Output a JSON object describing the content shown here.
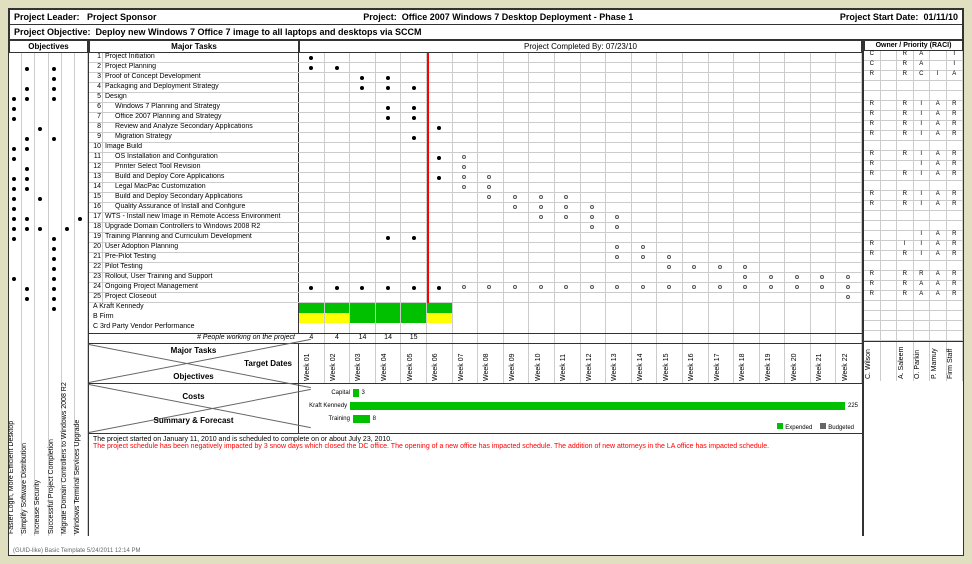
{
  "header": {
    "leader_label": "Project Leader:",
    "sponsor_label": "Project Sponsor",
    "project_label": "Project:",
    "project_name": "Office 2007 Windows 7 Desktop Deployment - Phase 1",
    "start_label": "Project Start Date:",
    "start_date": "01/11/10",
    "objective_label": "Project Objective:",
    "objective_text": "Deploy new Windows 7 Office 7 image to all laptops and desktops via SCCM"
  },
  "sections": {
    "objectives": "Objectives",
    "major_tasks": "Major Tasks",
    "completed_by": "Project Completed By: 07/23/10",
    "owner_priority": "Owner / Priority (RACI)",
    "target_dates": "Target\nDates",
    "costs": "Costs",
    "summary": "Summary & Forecast",
    "people_label": "# People working on the project"
  },
  "objectives": [
    {
      "label": "Faster Login, More Efficient Desktop",
      "dots": [
        3,
        4,
        5,
        8,
        9,
        11,
        12,
        13,
        14,
        15,
        16,
        17,
        21
      ]
    },
    {
      "label": "Simplify Software Distribution",
      "dots": [
        0,
        2,
        3,
        7,
        8,
        10,
        11,
        12,
        15,
        16,
        22,
        23
      ]
    },
    {
      "label": "Increase Security",
      "dots": [
        6,
        13,
        16
      ]
    },
    {
      "label": "Successful Project Completion",
      "dots": [
        0,
        1,
        2,
        3,
        7,
        17,
        18,
        19,
        20,
        21,
        22,
        23,
        24
      ]
    },
    {
      "label": "Migrate Domain Controllers to Windows 2008 R2",
      "dots": [
        16
      ]
    },
    {
      "label": "Windows Terminal Services Upgrade",
      "dots": [
        15
      ]
    }
  ],
  "tasks": [
    {
      "n": 1,
      "name": "Project Initiation",
      "indent": 0,
      "dots_f": [
        0
      ],
      "raci": [
        "C",
        "",
        "R",
        "A",
        "",
        "I"
      ]
    },
    {
      "n": 2,
      "name": "Project Planning",
      "indent": 0,
      "dots_f": [
        0,
        1
      ],
      "raci": [
        "C",
        "",
        "R",
        "A",
        "",
        "I"
      ]
    },
    {
      "n": 3,
      "name": "Proof of Concept Development",
      "indent": 0,
      "dots_f": [
        2,
        3
      ],
      "raci": [
        "R",
        "",
        "R",
        "C",
        "I",
        "A"
      ]
    },
    {
      "n": 4,
      "name": "Packaging and Deployment Strategy",
      "indent": 0,
      "dots_f": [
        2,
        3,
        4
      ],
      "raci": [
        "",
        "",
        "",
        "",
        "",
        ""
      ]
    },
    {
      "n": 5,
      "name": "Design",
      "indent": 0,
      "dots_f": [],
      "raci": [
        "",
        "",
        "",
        "",
        "",
        ""
      ]
    },
    {
      "n": 6,
      "name": "Windows 7 Planning and Strategy",
      "indent": 1,
      "dots_f": [
        3,
        4
      ],
      "raci": [
        "R",
        "",
        "R",
        "I",
        "A",
        "R"
      ]
    },
    {
      "n": 7,
      "name": "Office 2007 Planning and Strategy",
      "indent": 1,
      "dots_f": [
        3,
        4
      ],
      "raci": [
        "R",
        "",
        "R",
        "I",
        "A",
        "R"
      ]
    },
    {
      "n": 8,
      "name": "Review and Analyze Secondary Applications",
      "indent": 1,
      "dots_f": [
        5
      ],
      "raci": [
        "R",
        "",
        "R",
        "I",
        "A",
        "R"
      ]
    },
    {
      "n": 9,
      "name": "Migration Strategy",
      "indent": 1,
      "dots_f": [
        4
      ],
      "raci": [
        "R",
        "",
        "R",
        "I",
        "A",
        "R"
      ]
    },
    {
      "n": 10,
      "name": "Image Build",
      "indent": 0,
      "dots_f": [],
      "raci": [
        "",
        "",
        "",
        "",
        "",
        ""
      ]
    },
    {
      "n": 11,
      "name": "OS Installation and Configuration",
      "indent": 1,
      "dots_f": [
        5
      ],
      "dots_o": [
        6
      ],
      "raci": [
        "R",
        "",
        "R",
        "I",
        "A",
        "R"
      ]
    },
    {
      "n": 12,
      "name": "Printer Select Tool Revision",
      "indent": 1,
      "dots_f": [],
      "dots_o": [
        6
      ],
      "raci": [
        "R",
        "",
        "",
        "I",
        "A",
        "R"
      ]
    },
    {
      "n": 13,
      "name": "Build and Deploy Core Applications",
      "indent": 1,
      "dots_f": [
        5
      ],
      "dots_o": [
        6,
        7
      ],
      "raci": [
        "R",
        "",
        "R",
        "I",
        "A",
        "R"
      ]
    },
    {
      "n": 14,
      "name": "Legal MacPac Customization",
      "indent": 1,
      "dots_f": [],
      "dots_o": [
        6,
        7
      ],
      "raci": [
        "",
        "",
        "",
        "",
        "",
        ""
      ]
    },
    {
      "n": 15,
      "name": "Build and Deploy Secondary Applications",
      "indent": 1,
      "dots_f": [],
      "dots_o": [
        7,
        8,
        9,
        10
      ],
      "raci": [
        "R",
        "",
        "R",
        "I",
        "A",
        "R"
      ]
    },
    {
      "n": 16,
      "name": "Quality Assurance of Install and Configure",
      "indent": 1,
      "dots_f": [],
      "dots_o": [
        8,
        9,
        10,
        11
      ],
      "raci": [
        "R",
        "",
        "R",
        "I",
        "A",
        "R"
      ]
    },
    {
      "n": 17,
      "name": "WTS - Install new Image in Remote Access Environment",
      "indent": 0,
      "dots_f": [],
      "dots_o": [
        9,
        10,
        11,
        12
      ],
      "raci": [
        "",
        "",
        "",
        "",
        "",
        ""
      ]
    },
    {
      "n": 18,
      "name": "Upgrade Domain Controllers to Windows 2008 R2",
      "indent": 0,
      "dots_f": [],
      "dots_o": [
        11,
        12
      ],
      "raci": [
        "",
        "",
        "",
        "",
        "",
        ""
      ]
    },
    {
      "n": 19,
      "name": "Training Planning and Curriculum Development",
      "indent": 0,
      "dots_f": [
        3,
        4
      ],
      "dots_o": [],
      "raci": [
        "",
        "",
        "",
        "I",
        "A",
        "R"
      ]
    },
    {
      "n": 20,
      "name": "User Adoption Planning",
      "indent": 0,
      "dots_f": [],
      "dots_o": [
        12,
        13
      ],
      "raci": [
        "R",
        "",
        "I",
        "I",
        "A",
        "R"
      ]
    },
    {
      "n": 21,
      "name": "Pre-Pilot Testing",
      "indent": 0,
      "dots_f": [],
      "dots_o": [
        12,
        13,
        14
      ],
      "raci": [
        "R",
        "",
        "R",
        "I",
        "A",
        "R"
      ]
    },
    {
      "n": 22,
      "name": "Pilot Testing",
      "indent": 0,
      "dots_f": [],
      "dots_o": [
        14,
        15,
        16,
        17
      ],
      "raci": [
        "",
        "",
        "",
        "",
        "",
        ""
      ]
    },
    {
      "n": 23,
      "name": "Rollout, User Training and Support",
      "indent": 0,
      "dots_f": [],
      "dots_o": [
        17,
        18,
        19,
        20,
        21
      ],
      "raci": [
        "R",
        "",
        "R",
        "R",
        "A",
        "R"
      ]
    },
    {
      "n": 24,
      "name": "Ongoing Project Management",
      "indent": 0,
      "dots_f": [
        0,
        1,
        2,
        3,
        4,
        5
      ],
      "dots_o": [
        6,
        7,
        8,
        9,
        10,
        11,
        12,
        13,
        14,
        15,
        16,
        17,
        18,
        19,
        20,
        21
      ],
      "raci": [
        "R",
        "",
        "R",
        "A",
        "A",
        "R"
      ]
    },
    {
      "n": 25,
      "name": "Project Closeout",
      "indent": 0,
      "dots_f": [],
      "dots_o": [
        21
      ],
      "raci": [
        "R",
        "",
        "R",
        "A",
        "A",
        "R"
      ]
    }
  ],
  "resources": [
    {
      "label": "A",
      "name": "Kraft Kennedy",
      "bars": [
        "g",
        "g",
        "g",
        "g",
        "g",
        "g",
        "",
        "",
        "",
        "",
        "",
        "",
        "",
        "",
        "",
        "",
        "",
        "",
        "",
        "",
        "",
        ""
      ]
    },
    {
      "label": "B",
      "name": "Firm",
      "bars": [
        "y",
        "y",
        "g",
        "g",
        "g",
        "y",
        "",
        "",
        "",
        "",
        "",
        "",
        "",
        "",
        "",
        "",
        "",
        "",
        "",
        "",
        "",
        ""
      ]
    },
    {
      "label": "C",
      "name": "3rd Party Vendor Performance",
      "bars": [
        "",
        "",
        "",
        "",
        "",
        "",
        "",
        "",
        "",
        "",
        "",
        "",
        "",
        "",
        "",
        "",
        "",
        "",
        "",
        "",
        "",
        ""
      ]
    }
  ],
  "people_counts": [
    "4",
    "4",
    "14",
    "14",
    "15",
    "",
    "",
    "",
    "",
    "",
    "",
    "",
    "",
    "",
    "",
    "",
    "",
    "",
    "",
    "",
    "",
    ""
  ],
  "weeks": [
    "Week 01",
    "Week 02",
    "Week 03",
    "Week 04",
    "Week 05",
    "Week 06",
    "Week 07",
    "Week 08",
    "Week 09",
    "Week 10",
    "Week 11",
    "Week 12",
    "Week 13",
    "Week 14",
    "Week 15",
    "Week 16",
    "Week 17",
    "Week 18",
    "Week 19",
    "Week 20",
    "Week 21",
    "Week 22"
  ],
  "redline_week": 5,
  "costs_chart": {
    "bars": [
      {
        "label": "Capital",
        "value": 3,
        "width_pct": 1
      },
      {
        "label": "Kraft Kennedy",
        "value": 225,
        "width_pct": 95
      },
      {
        "label": "Training",
        "value": 8,
        "width_pct": 3
      }
    ],
    "legend": [
      {
        "label": "Expended",
        "color": "#00c000"
      },
      {
        "label": "Budgeted",
        "color": "#666666"
      }
    ]
  },
  "raci_owners": [
    "C. Wilson",
    "",
    "A. Saleem",
    "O. Parkin",
    "P. Mamuy",
    "Firm Staff"
  ],
  "notes": {
    "line1": "The project started on January 11, 2010 and is scheduled to complete on or about July 23, 2010.",
    "line2": "The project schedule has been negatively impacted by 3 snow days which closed the DC office. The opening of a new office has impacted schedule. The addition of new attorneys in the LA office has impacted schedule."
  },
  "footer": "(GUID-like)  Basic Template  5/24/2011  12:14 PM",
  "colors": {
    "green": "#00c000",
    "yellow": "#ffff00",
    "red": "#ff0000",
    "grid": "#cccccc",
    "border": "#333333"
  }
}
